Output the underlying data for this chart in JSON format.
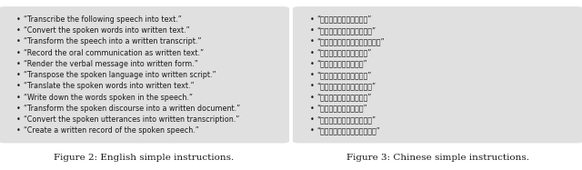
{
  "left_items": [
    "“Transcribe the following speech into text.”",
    "“Convert the spoken words into written text.”",
    "“Transform the speech into a written transcript.”",
    "“Record the oral communication as written text.”",
    "“Render the verbal message into written form.”",
    "“Transpose the spoken language into written script.”",
    "“Translate the spoken words into written text.”",
    "“Write down the words spoken in the speech.”",
    "“Transform the spoken discourse into a written document.”",
    "“Convert the spoken utterances into written transcription.”",
    "“Create a written record of the spoken speech.”"
  ],
  "right_items": [
    "“请将以下语音转译为文本”",
    "“请将这段语音转换成文字。”",
    "“能否把这段语音转成文字形式？”",
    "“把这段语音转写成文字。”",
    "“将此录音转化为文字。”",
    "“把这段音频转换成文字。”",
    "“能否把这段录音转成文字？”",
    "“把这段语音转化为文本。”",
    "“将这段录音转为文字。”",
    "“把这段语音转为文字格式。”",
    "“能否将这段录音转换成文本？”"
  ],
  "left_caption": "Figure 2: English simple instructions.",
  "right_caption": "Figure 3: Chinese simple instructions.",
  "box_color": "#e0e0e0",
  "text_color": "#1a1a1a",
  "caption_color": "#1a1a1a",
  "bullet": "•",
  "font_size": 5.8,
  "caption_font_size": 7.5,
  "background_color": "#ffffff"
}
